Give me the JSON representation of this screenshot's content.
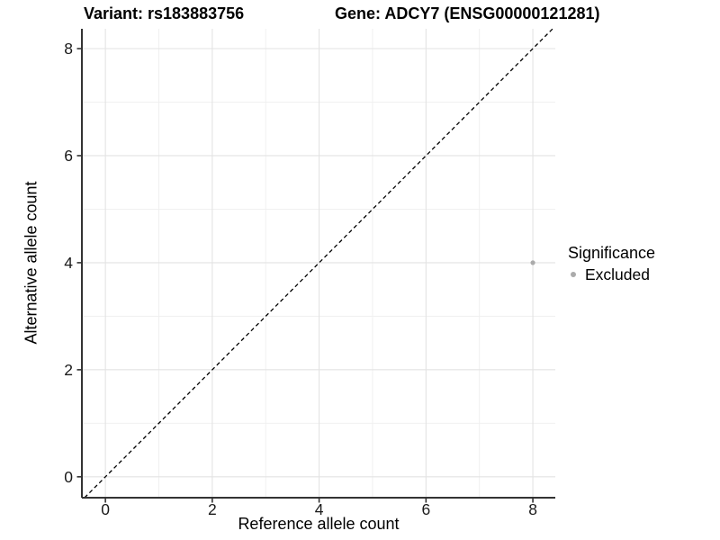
{
  "chart_data": {
    "type": "scatter",
    "title_left": "Variant: rs183883756",
    "title_right": "Gene: ADCY7 (ENSG00000121281)",
    "xlabel": "Reference allele count",
    "ylabel": "Alternative allele count",
    "xlim": [
      -0.44,
      8.42
    ],
    "ylim": [
      -0.39,
      8.37
    ],
    "x_ticks": [
      0,
      2,
      4,
      6,
      8
    ],
    "y_ticks": [
      0,
      2,
      4,
      6,
      8
    ],
    "x_minor_ticks": [
      1,
      3,
      5,
      7
    ],
    "y_minor_ticks": [
      1,
      3,
      5,
      7
    ],
    "grid": "on",
    "identity_line": {
      "style": "dashed",
      "equation": "y = x",
      "color": "#000000"
    },
    "series": [
      {
        "name": "Excluded",
        "color": "#ababab",
        "points": [
          {
            "x": 8,
            "y": 4
          }
        ]
      }
    ],
    "legend": {
      "title": "Significance",
      "position": "right",
      "entries": [
        {
          "label": "Excluded",
          "color": "#ababab"
        }
      ]
    },
    "colors": {
      "background": "#ffffff",
      "grid_major": "#e3e3e3",
      "grid_minor": "#efefef",
      "axis": "#333333",
      "tick_text": "#1a1a1a"
    }
  }
}
